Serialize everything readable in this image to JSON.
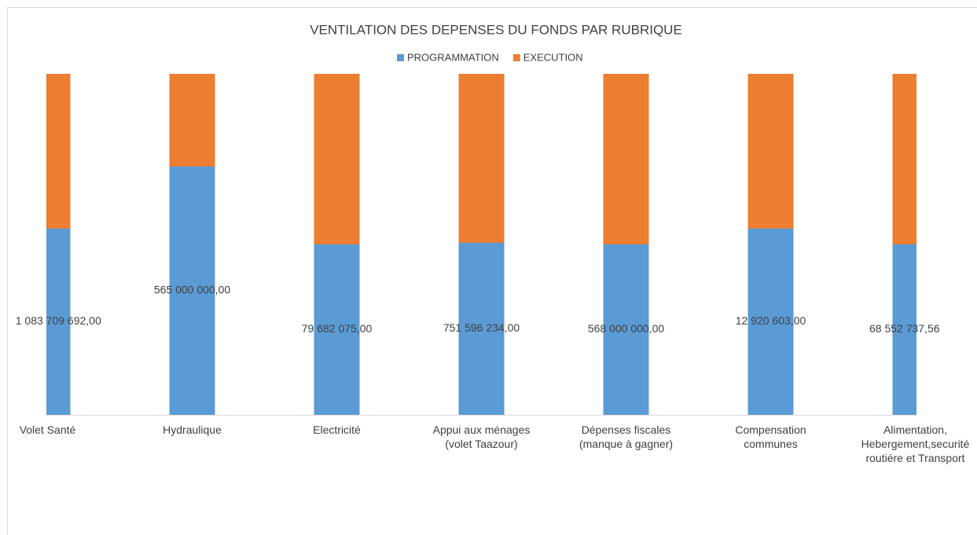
{
  "chart_data": {
    "type": "bar",
    "stacking": "percent",
    "title": "VENTILATION DES DEPENSES DU FONDS PAR RUBRIQUE",
    "categories": [
      [
        "Volet Santé"
      ],
      [
        "Hydraulique"
      ],
      [
        "Electricité"
      ],
      [
        "Appui aux ménages",
        "(volet Taazour)"
      ],
      [
        "Dépenses fiscales",
        "(manque à gagner)"
      ],
      [
        "Compensation",
        "communes"
      ],
      [
        "Alimentation,",
        "Hebergement,securité",
        "routiére et  Transport"
      ]
    ],
    "series": [
      {
        "name": "PROGRAMMATION",
        "color": "#5b9bd5",
        "values": [
          1083709692,
          565000000,
          79682075,
          751596234,
          568000000,
          12920603,
          68552737.56
        ],
        "value_labels": [
          "1 083 709 692,00",
          "565 000 000,00",
          "79 682 075,00",
          "751 596 234,00",
          "568 000 000,00",
          "12 920 603,00",
          "68 552 737,56"
        ]
      },
      {
        "name": "EXECUTION",
        "color": "#ed7d31",
        "values": [
          900800000,
          211000000,
          79700000,
          737900000,
          568000000,
          10740000,
          68550000
        ]
      }
    ],
    "legend": "top"
  }
}
